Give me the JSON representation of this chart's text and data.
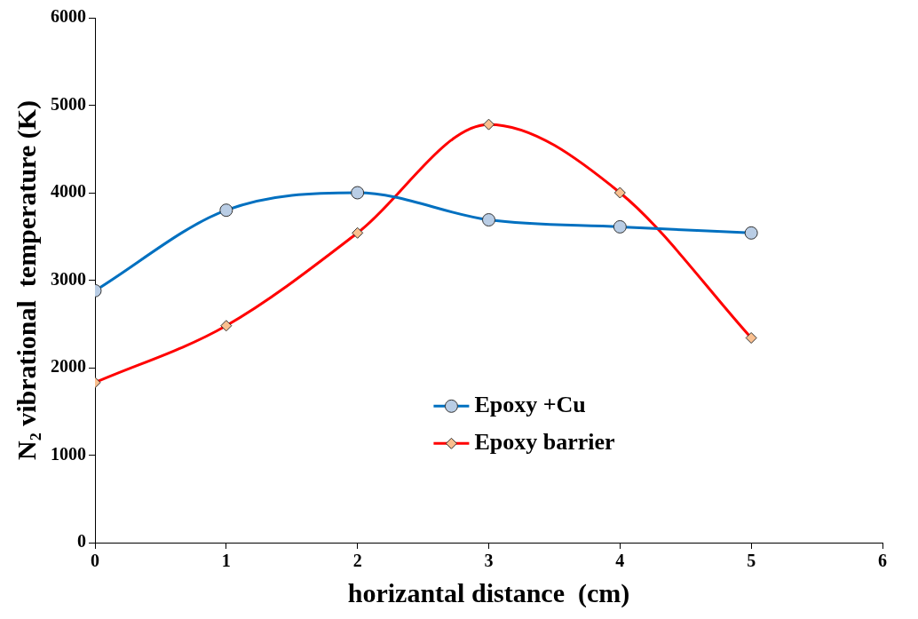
{
  "chart_data": {
    "type": "line",
    "xlabel": "horizantal distance  (cm)",
    "ylabel": "N₂ vibrational  temperature (K)",
    "x": [
      0,
      1,
      2,
      3,
      4,
      5
    ],
    "series": [
      {
        "name": "Epoxy +Cu",
        "color": "#0070c0",
        "marker": "circle",
        "values": [
          2880,
          3800,
          4000,
          3690,
          3610,
          3540
        ]
      },
      {
        "name": "Epoxy barrier",
        "color": "#ff0000",
        "marker": "diamond",
        "values": [
          1830,
          2480,
          3540,
          4780,
          4000,
          2340
        ]
      }
    ],
    "xlim": [
      0,
      6
    ],
    "xticks": [
      0,
      1,
      2,
      3,
      4,
      5,
      6
    ],
    "ylim": [
      0,
      6000
    ],
    "yticks": [
      0,
      1000,
      2000,
      3000,
      4000,
      5000,
      6000
    ],
    "grid": false,
    "legend": "center"
  }
}
